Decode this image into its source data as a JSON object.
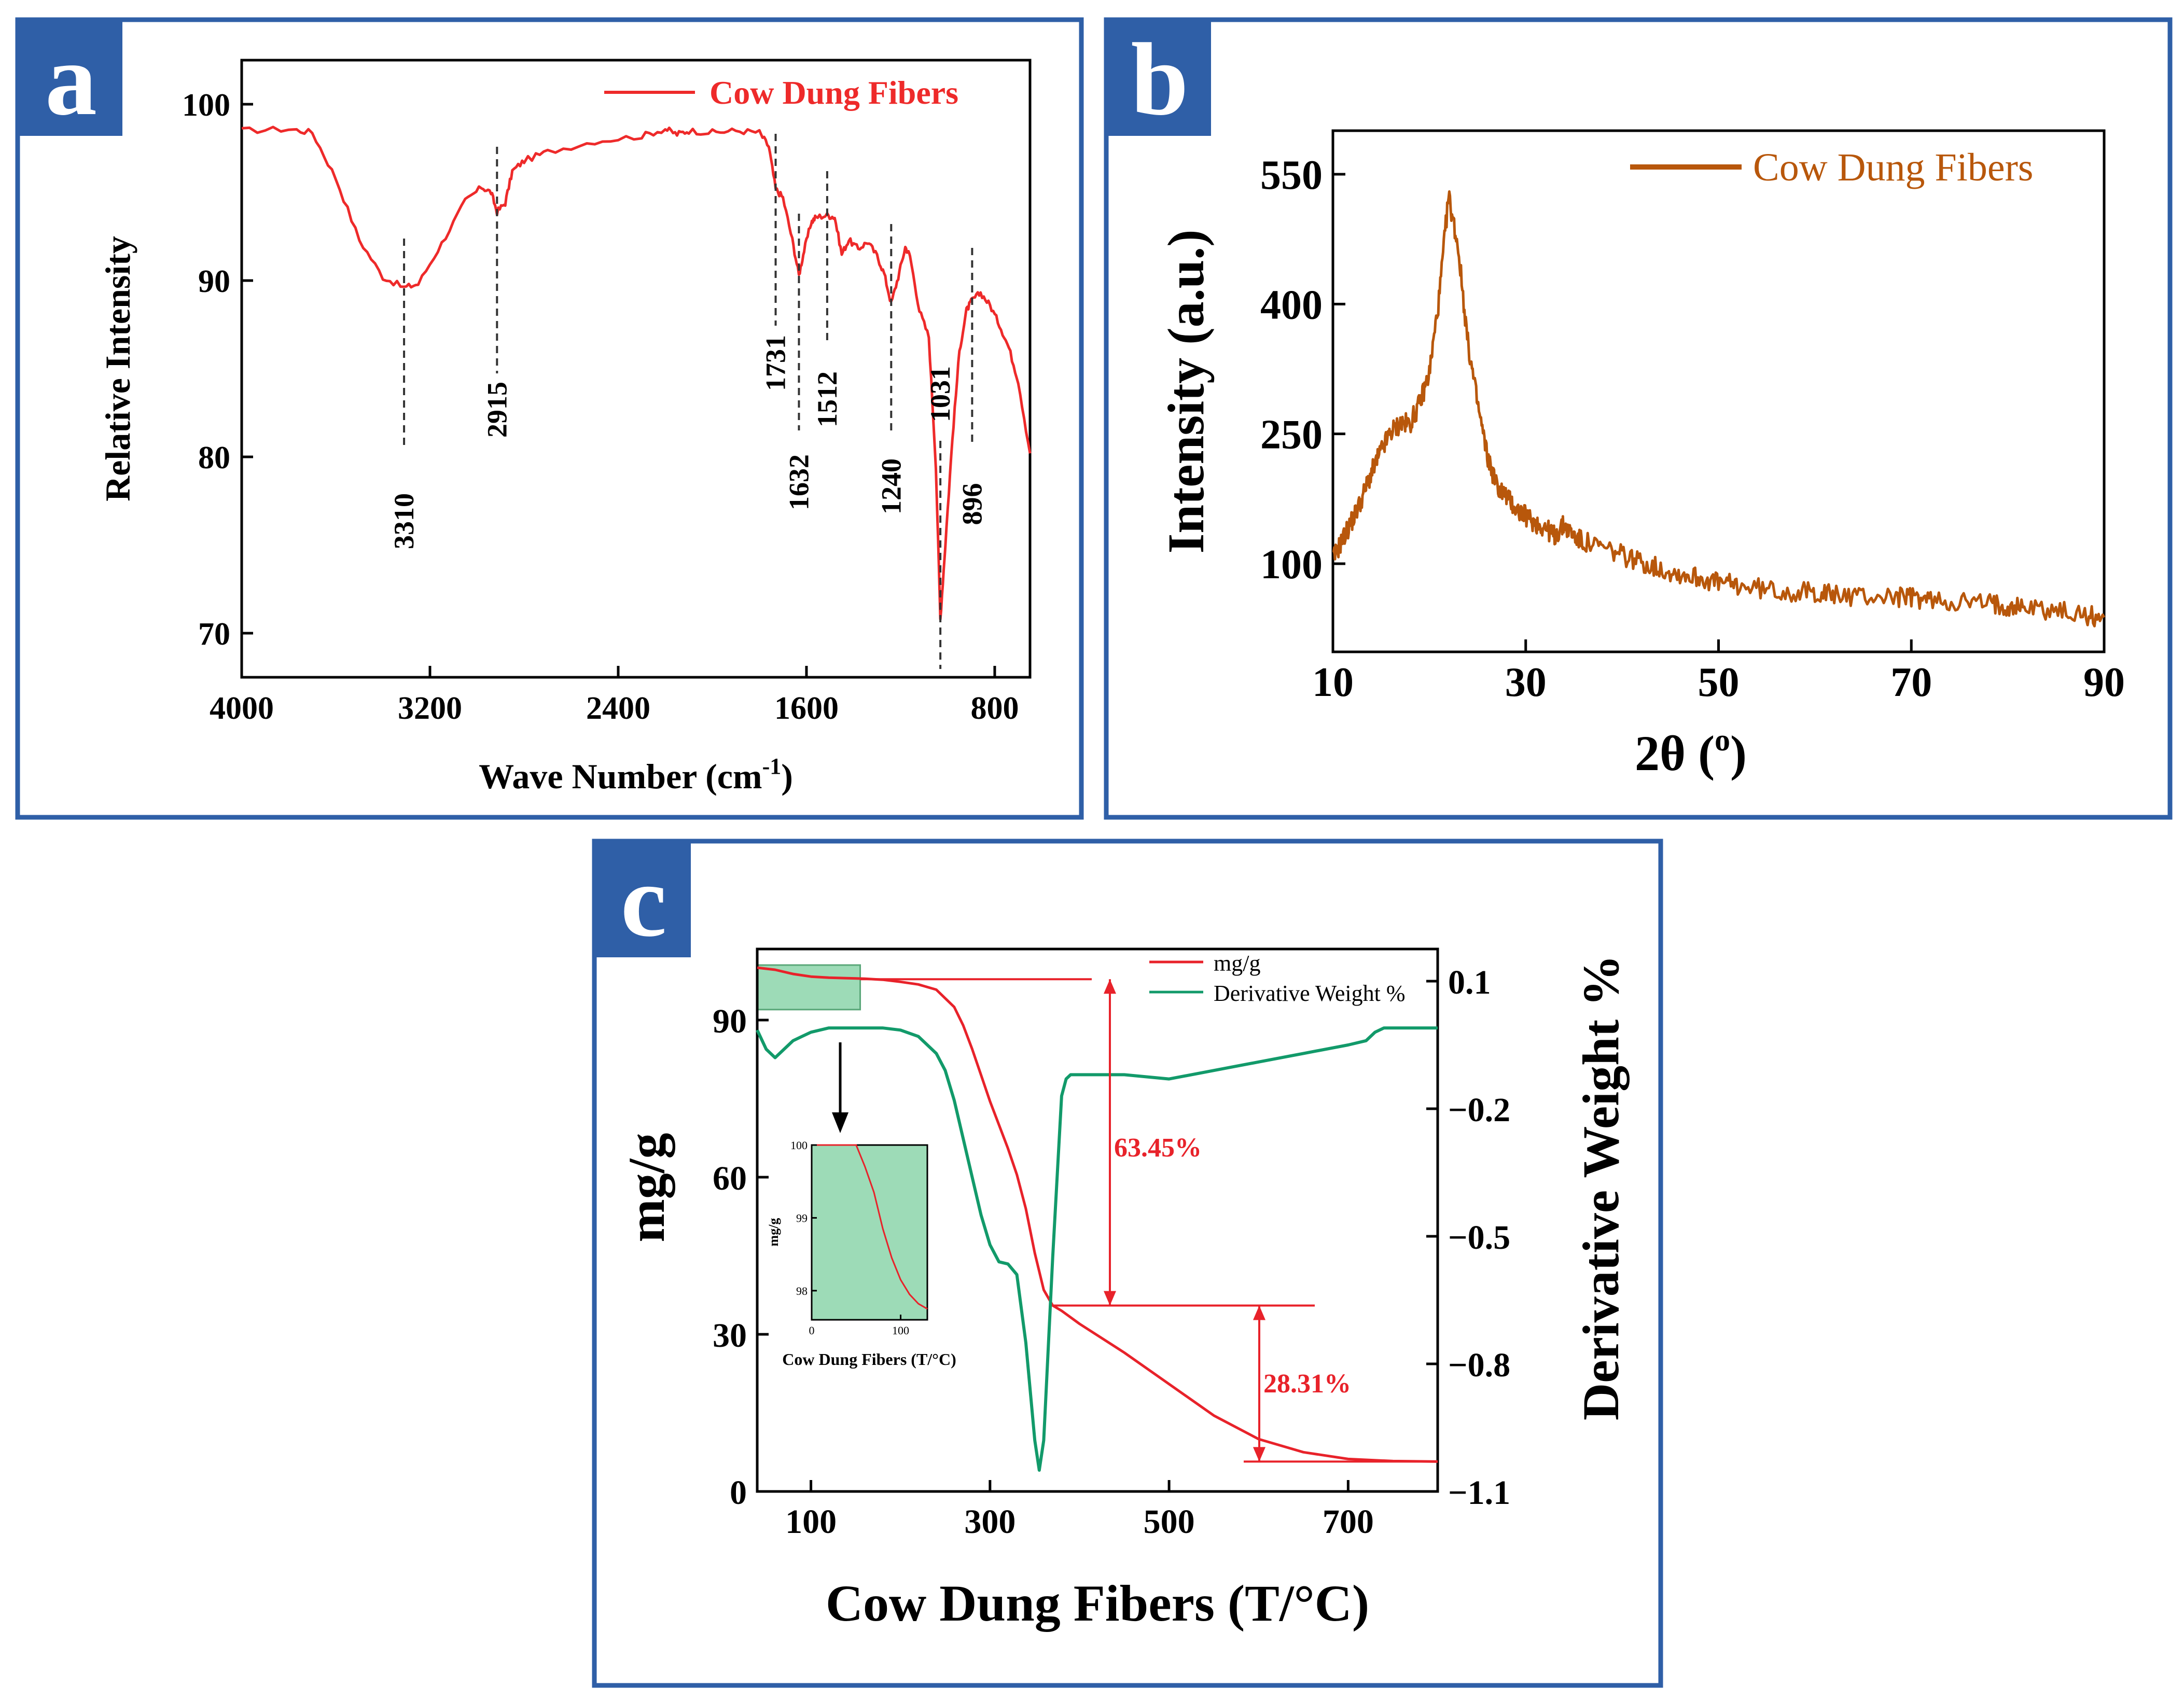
{
  "colors": {
    "frame": "#2f5fa7",
    "label_bg": "#2f5fa7",
    "ftir": "#ee2a2a",
    "xrd": "#b8570b",
    "tga": "#e8222a",
    "dtg": "#129a6a",
    "inset_fill": "#7ccf9f",
    "annot": "#e8222a"
  },
  "panels": {
    "a": {
      "letter": "a"
    },
    "b": {
      "letter": "b"
    },
    "c": {
      "letter": "c"
    }
  },
  "chart_data": [
    {
      "id": "a",
      "type": "line",
      "title": "",
      "xlabel": "Wave Number (cm",
      "xlabel_sup": "-1",
      "xlabel_close": ")",
      "ylabel": "Relative Intensity",
      "xlim": [
        4000,
        650
      ],
      "ylim": [
        67.5,
        102.5
      ],
      "xticks": [
        4000,
        3200,
        2400,
        1600,
        800
      ],
      "yticks": [
        70,
        80,
        90,
        100
      ],
      "grid": false,
      "legend": "top-right",
      "series": [
        {
          "name": "Cow Dung Fibers",
          "x": [
            4000,
            3800,
            3700,
            3600,
            3500,
            3400,
            3310,
            3250,
            3150,
            3050,
            2980,
            2940,
            2915,
            2880,
            2850,
            2800,
            2700,
            2500,
            2300,
            2200,
            2150,
            2100,
            2000,
            1900,
            1800,
            1760,
            1731,
            1700,
            1660,
            1632,
            1610,
            1580,
            1560,
            1512,
            1480,
            1450,
            1420,
            1380,
            1340,
            1300,
            1270,
            1240,
            1210,
            1180,
            1160,
            1120,
            1080,
            1050,
            1031,
            1010,
            980,
            950,
            920,
            896,
            860,
            820,
            780,
            740,
            700,
            650
          ],
          "y": [
            98.5,
            98.6,
            98.4,
            95.8,
            92.3,
            90.2,
            89.6,
            89.8,
            92.1,
            94.5,
            95.3,
            95.0,
            93.9,
            94.4,
            96.2,
            96.8,
            97.3,
            97.9,
            98.2,
            98.6,
            98.3,
            98.5,
            98.4,
            98.5,
            98.4,
            97.6,
            95.2,
            94.7,
            92.3,
            90.3,
            91.7,
            93.3,
            93.6,
            93.7,
            93.6,
            91.5,
            92.3,
            91.8,
            92.2,
            91.4,
            90.4,
            88.7,
            90.2,
            91.9,
            91.4,
            88.3,
            86.8,
            79.5,
            70.8,
            75.0,
            81.0,
            86.0,
            88.3,
            88.9,
            89.3,
            88.6,
            87.5,
            86.2,
            84.3,
            80.2
          ]
        }
      ],
      "annotations": [
        {
          "label": "3310",
          "x": 3310,
          "y": 89.6
        },
        {
          "label": "2915",
          "x": 2915,
          "y": 93.9
        },
        {
          "label": "1731",
          "x": 1731,
          "y": 95.2
        },
        {
          "label": "1632",
          "x": 1632,
          "y": 90.3
        },
        {
          "label": "1512",
          "x": 1512,
          "y": 93.7
        },
        {
          "label": "1240",
          "x": 1240,
          "y": 88.7
        },
        {
          "label": "1031",
          "x": 1031,
          "y": 70.8
        },
        {
          "label": "896",
          "x": 896,
          "y": 88.9
        }
      ]
    },
    {
      "id": "b",
      "type": "line",
      "title": "",
      "xlabel": "2θ (",
      "xlabel_sup": "o",
      "xlabel_close": ")",
      "ylabel": "Intensity (a.u.)",
      "xlim": [
        10,
        90
      ],
      "ylim": [
        0,
        600
      ],
      "xticks": [
        10,
        30,
        50,
        70,
        90
      ],
      "yticks": [
        100,
        250,
        400,
        550
      ],
      "grid": false,
      "legend": "top-right",
      "series": [
        {
          "name": "Cow Dung Fibers",
          "x": [
            10,
            11,
            12,
            13,
            14,
            15,
            16,
            17,
            18,
            19,
            20,
            21,
            22,
            23,
            24,
            25,
            26,
            27,
            28,
            29,
            30,
            31,
            32,
            33,
            34,
            35,
            36,
            38,
            40,
            42,
            44,
            46,
            48,
            50,
            52,
            55,
            58,
            60,
            62,
            65,
            68,
            70,
            72,
            75,
            78,
            80,
            82,
            85,
            88,
            90
          ],
          "y": [
            105,
            128,
            150,
            175,
            205,
            230,
            252,
            262,
            262,
            285,
            320,
            405,
            525,
            465,
            355,
            285,
            225,
            190,
            178,
            163,
            155,
            147,
            142,
            132,
            145,
            132,
            125,
            118,
            110,
            102,
            94,
            88,
            84,
            78,
            75,
            70,
            67,
            67,
            64,
            62,
            62,
            61,
            58,
            56,
            54,
            52,
            50,
            46,
            40,
            38
          ]
        }
      ]
    },
    {
      "id": "c",
      "type": "line",
      "title": "",
      "xlabel": "Cow Dung Fibers (T/°C)",
      "ylabel": "mg/g",
      "y2label": "Derivative Weight %",
      "xlim": [
        40,
        800
      ],
      "ylim": [
        0,
        104
      ],
      "y2lim": [
        -1.1,
        0.14
      ],
      "xticks": [
        100,
        300,
        500,
        700
      ],
      "yticks": [
        0,
        30,
        60,
        90
      ],
      "y2ticks": [
        0.1,
        -0.2,
        -0.5,
        -0.8,
        -1.1
      ],
      "y2tick_labels": [
        "0.1",
        "−0.2",
        "−0.5",
        "−0.8",
        "−1.1"
      ],
      "grid": false,
      "legend": "top-right",
      "series": [
        {
          "name": "mg/g",
          "axis": "left",
          "x": [
            40,
            60,
            80,
            100,
            120,
            140,
            160,
            180,
            200,
            220,
            240,
            260,
            270,
            280,
            290,
            300,
            310,
            320,
            330,
            340,
            350,
            360,
            370,
            380,
            400,
            450,
            500,
            550,
            600,
            650,
            700,
            750,
            800
          ],
          "y": [
            100,
            99.6,
            98.8,
            98.3,
            98.1,
            98.0,
            97.9,
            97.7,
            97.3,
            96.8,
            95.8,
            92.5,
            89,
            84.5,
            79.5,
            74.5,
            70,
            65.5,
            60.5,
            54,
            45.5,
            38.5,
            35.5,
            34.5,
            32,
            26.5,
            20.5,
            14.5,
            10,
            7.5,
            6.2,
            5.8,
            5.7
          ]
        },
        {
          "name": "Derivative Weight %",
          "axis": "right",
          "x": [
            40,
            50,
            60,
            70,
            80,
            90,
            100,
            120,
            140,
            160,
            180,
            200,
            220,
            240,
            250,
            260,
            270,
            280,
            290,
            300,
            310,
            320,
            330,
            340,
            350,
            355,
            360,
            370,
            380,
            385,
            390,
            400,
            450,
            500,
            550,
            600,
            650,
            700,
            720,
            730,
            740,
            760,
            800
          ],
          "y": [
            -0.015,
            -0.06,
            -0.08,
            -0.06,
            -0.04,
            -0.03,
            -0.02,
            -0.01,
            -0.01,
            -0.01,
            -0.01,
            -0.015,
            -0.03,
            -0.07,
            -0.11,
            -0.18,
            -0.27,
            -0.36,
            -0.45,
            -0.52,
            -0.56,
            -0.565,
            -0.59,
            -0.75,
            -0.98,
            -1.05,
            -0.98,
            -0.55,
            -0.17,
            -0.13,
            -0.12,
            -0.12,
            -0.12,
            -0.13,
            -0.11,
            -0.09,
            -0.07,
            -0.05,
            -0.04,
            -0.02,
            -0.01,
            -0.01,
            -0.01
          ]
        }
      ],
      "annotations": [
        {
          "label": "63.45%",
          "x_line_from": 155,
          "x_line_to": 430,
          "y_top": 97.8,
          "y_bottom": 35.5,
          "arrow_x": 430
        },
        {
          "label": "28.31%",
          "x_line_from": 370,
          "x_line_to": 800,
          "y_top": 35.5,
          "y_bottom": 5.7,
          "arrow_x": 600
        }
      ],
      "inset": {
        "xlabel": "Cow Dung Fibers (T/°C)",
        "ylabel": "mg/g",
        "xlim": [
          0,
          130
        ],
        "ylim": [
          97.6,
          100
        ],
        "xticks": [
          0,
          100
        ],
        "yticks": [
          98,
          99,
          100
        ],
        "series": {
          "x": [
            0,
            10,
            20,
            30,
            40,
            50,
            60,
            70,
            80,
            90,
            100,
            110,
            120,
            130
          ],
          "y": [
            100,
            100,
            100,
            100,
            100,
            100,
            99.7,
            99.35,
            98.85,
            98.45,
            98.15,
            97.95,
            97.82,
            97.75
          ]
        }
      }
    }
  ]
}
